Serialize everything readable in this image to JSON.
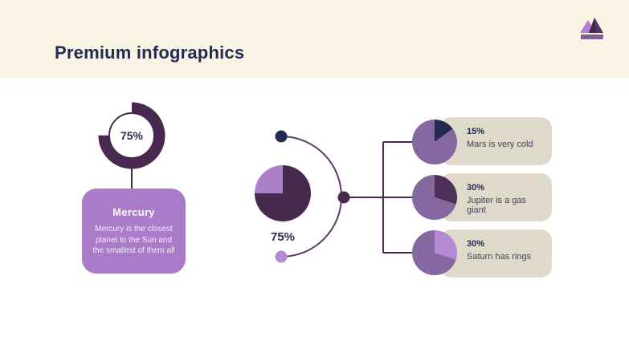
{
  "header": {
    "title": "Premium infographics"
  },
  "theme": {
    "header_bg": "#F8F3E2",
    "body_bg": "#FFFFFF",
    "title_color": "#232B55",
    "dark_plum": "#4A2950",
    "navy": "#232A52",
    "medium_purple": "#8568A0",
    "light_purple": "#B68AD3",
    "lavender_card": "#A97BC9",
    "beige_card": "#DED9C9"
  },
  "mercury": {
    "percent_label": "75%",
    "title": "Mercury",
    "description": "Mercury is the closest planet to the Sun and the smallest of them all"
  },
  "center": {
    "percent_label": "75%"
  },
  "planets": [
    {
      "percent": "15%",
      "text": "Mars is very cold"
    },
    {
      "percent": "30%",
      "text": "Jupiter is a gas giant"
    },
    {
      "percent": "30%",
      "text": "Saturn has rings"
    }
  ],
  "chart_data": [
    {
      "id": "mercury-progress-donut",
      "type": "donut",
      "label": "Mercury progress",
      "values": [
        {
          "label": "Mercury",
          "value": 75
        }
      ],
      "percent_label": "75%",
      "ring_color": "#4A2950"
    },
    {
      "id": "center-pie",
      "type": "pie",
      "percent_label": "75%",
      "slices": [
        {
          "label": "filled",
          "value": 75,
          "color": "#46294E"
        },
        {
          "label": "remainder",
          "value": 25,
          "color": "#AC80C9"
        }
      ]
    },
    {
      "id": "mars-pie",
      "type": "pie",
      "slices": [
        {
          "label": "Mars is very cold",
          "value": 15,
          "color": "#232A52"
        },
        {
          "label": "rest",
          "value": 85,
          "color": "#8568A0"
        }
      ]
    },
    {
      "id": "jupiter-pie",
      "type": "pie",
      "slices": [
        {
          "label": "Jupiter is a gas giant",
          "value": 30,
          "color": "#4F3058"
        },
        {
          "label": "rest",
          "value": 70,
          "color": "#8568A0"
        }
      ]
    },
    {
      "id": "saturn-pie",
      "type": "pie",
      "slices": [
        {
          "label": "Saturn has rings",
          "value": 30,
          "color": "#B68AD3"
        },
        {
          "label": "rest",
          "value": 70,
          "color": "#8568A0"
        }
      ]
    }
  ]
}
